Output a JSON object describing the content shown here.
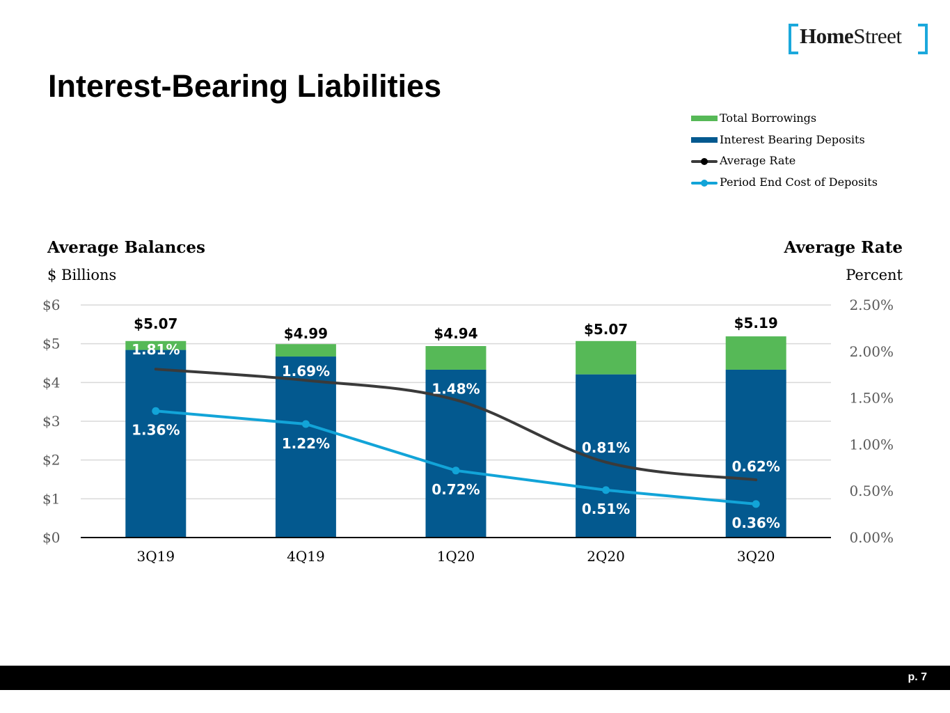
{
  "logo": {
    "part1": "Home",
    "part2": "Street"
  },
  "title": "Interest-Bearing Liabilities",
  "left_axis_header": "Average Balances",
  "left_axis_unit": "$ Billions",
  "right_axis_header": "Average Rate",
  "right_axis_unit": "Percent",
  "legend": [
    {
      "label": "Total Borrowings",
      "kind": "bar",
      "color": "#56b957"
    },
    {
      "label": "Interest Bearing Deposits",
      "kind": "bar",
      "color": "#03598f"
    },
    {
      "label": "Average Rate",
      "kind": "line",
      "color": "#3a3a3a",
      "dot": "#000000"
    },
    {
      "label": "Period End Cost of Deposits",
      "kind": "line",
      "color": "#12a4d8",
      "dot": "#12a4d8"
    }
  ],
  "footer": {
    "page": "p. 7"
  },
  "chart_data": {
    "type": "bar",
    "stacked": true,
    "categories": [
      "3Q19",
      "4Q19",
      "1Q20",
      "2Q20",
      "3Q20"
    ],
    "series": [
      {
        "name": "Interest Bearing Deposits",
        "type": "bar",
        "color": "#03598f",
        "values": [
          4.84,
          4.67,
          4.33,
          4.21,
          4.33
        ]
      },
      {
        "name": "Total Borrowings",
        "type": "bar",
        "color": "#56b957",
        "values": [
          0.23,
          0.32,
          0.61,
          0.86,
          0.86
        ]
      },
      {
        "name": "Average Rate",
        "type": "line",
        "axis": "right",
        "color": "#3a3a3a",
        "values": [
          1.81,
          1.69,
          1.48,
          0.81,
          0.62
        ],
        "labels": [
          "1.81%",
          "1.69%",
          "1.48%",
          "0.81%",
          "0.62%"
        ]
      },
      {
        "name": "Period End Cost of Deposits",
        "type": "line",
        "axis": "right",
        "color": "#12a4d8",
        "values": [
          1.36,
          1.22,
          0.72,
          0.51,
          0.36
        ],
        "labels": [
          "1.36%",
          "1.22%",
          "0.72%",
          "0.51%",
          "0.36%"
        ]
      }
    ],
    "totals": [
      5.07,
      4.99,
      4.94,
      5.07,
      5.19
    ],
    "total_labels": [
      "$5.07",
      "$4.99",
      "$4.94",
      "$5.07",
      "$5.19"
    ],
    "left_axis": {
      "range": [
        0,
        6
      ],
      "ticks": [
        0,
        1,
        2,
        3,
        4,
        5,
        6
      ],
      "tick_labels": [
        "$0",
        "$1",
        "$2",
        "$3",
        "$4",
        "$5",
        "$6"
      ]
    },
    "right_axis": {
      "range": [
        0,
        2.5
      ],
      "ticks": [
        0,
        0.5,
        1,
        1.5,
        2,
        2.5
      ],
      "tick_labels": [
        "0.00%",
        "0.50%",
        "1.00%",
        "1.50%",
        "2.00%",
        "2.50%"
      ]
    },
    "grid": true
  }
}
